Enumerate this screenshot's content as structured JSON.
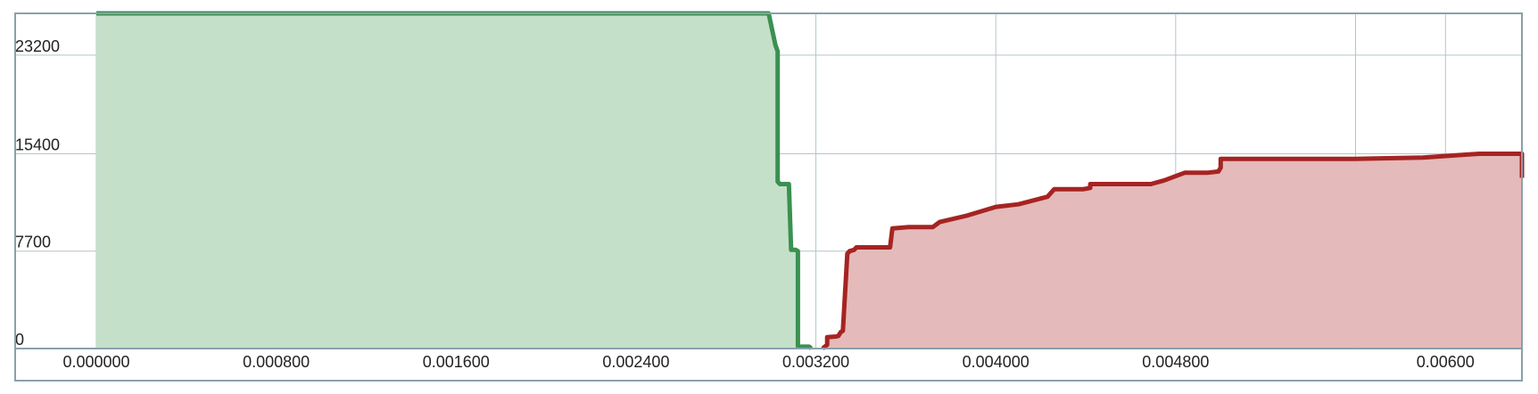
{
  "chart_data": {
    "type": "area",
    "title": "",
    "xlabel": "",
    "ylabel": "",
    "xlim": [
      0,
      0.00634
    ],
    "ylim": [
      0,
      26500
    ],
    "grid": true,
    "x_ticks": [
      {
        "value": 0.0,
        "label": "0.000000"
      },
      {
        "value": 0.0008,
        "label": "0.000800"
      },
      {
        "value": 0.0016,
        "label": "0.001600"
      },
      {
        "value": 0.0024,
        "label": "0.002400"
      },
      {
        "value": 0.0032,
        "label": "0.003200"
      },
      {
        "value": 0.004,
        "label": "0.004000"
      },
      {
        "value": 0.0048,
        "label": "0.004800"
      },
      {
        "value": 0.006,
        "label": "0.00600"
      }
    ],
    "extra_x_gridlines": [
      0.0056
    ],
    "y_ticks": [
      {
        "value": 0,
        "label": "0"
      },
      {
        "value": 7700,
        "label": "7700"
      },
      {
        "value": 15400,
        "label": "15400"
      },
      {
        "value": 23200,
        "label": "23200"
      }
    ],
    "series": [
      {
        "key": "bids",
        "color": "#3a9150",
        "fill": "#c3dfc8",
        "points": [
          [
            0.0,
            26500
          ],
          [
            0.00299,
            26500
          ],
          [
            0.00302,
            24000
          ],
          [
            0.00303,
            23500
          ],
          [
            0.00303,
            13200
          ],
          [
            0.00304,
            13000
          ],
          [
            0.00308,
            13000
          ],
          [
            0.00309,
            7800
          ],
          [
            0.00311,
            7800
          ],
          [
            0.00312,
            7700
          ],
          [
            0.00312,
            200
          ],
          [
            0.00313,
            150
          ],
          [
            0.00317,
            150
          ],
          [
            0.00318,
            0
          ]
        ]
      },
      {
        "key": "asks",
        "color": "#a52422",
        "fill": "#e4b9b9",
        "points": [
          [
            0.00323,
            0
          ],
          [
            0.00325,
            300
          ],
          [
            0.00325,
            900
          ],
          [
            0.00329,
            950
          ],
          [
            0.0033,
            1000
          ],
          [
            0.00331,
            1300
          ],
          [
            0.00332,
            1400
          ],
          [
            0.00334,
            7500
          ],
          [
            0.00335,
            7700
          ],
          [
            0.00337,
            7800
          ],
          [
            0.00338,
            8000
          ],
          [
            0.00353,
            8000
          ],
          [
            0.00354,
            9500
          ],
          [
            0.00361,
            9600
          ],
          [
            0.00372,
            9600
          ],
          [
            0.00375,
            10000
          ],
          [
            0.00387,
            10500
          ],
          [
            0.004,
            11200
          ],
          [
            0.0041,
            11400
          ],
          [
            0.00423,
            12000
          ],
          [
            0.00426,
            12600
          ],
          [
            0.00439,
            12600
          ],
          [
            0.00442,
            12700
          ],
          [
            0.00442,
            13000
          ],
          [
            0.00469,
            13000
          ],
          [
            0.00475,
            13300
          ],
          [
            0.00484,
            13900
          ],
          [
            0.00494,
            13900
          ],
          [
            0.00499,
            14000
          ],
          [
            0.005,
            14300
          ],
          [
            0.005,
            15000
          ],
          [
            0.0056,
            15000
          ],
          [
            0.0059,
            15100
          ],
          [
            0.00615,
            15400
          ],
          [
            0.00634,
            15400
          ],
          [
            0.00634,
            13500
          ]
        ]
      }
    ]
  }
}
